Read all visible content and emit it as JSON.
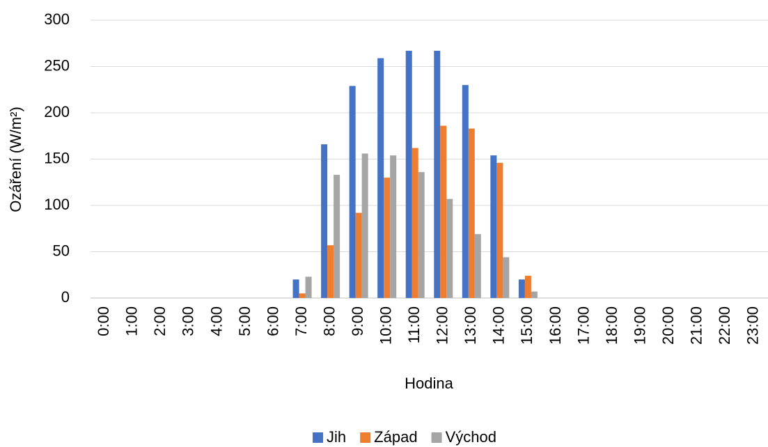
{
  "chart_data": {
    "type": "bar",
    "x_label": "Hodina",
    "y_label": "Ozáření (W/m²)",
    "categories": [
      "0:00",
      "1:00",
      "2:00",
      "3:00",
      "4:00",
      "5:00",
      "6:00",
      "7:00",
      "8:00",
      "9:00",
      "10:00",
      "11:00",
      "12:00",
      "13:00",
      "14:00",
      "15:00",
      "16:00",
      "17:00",
      "18:00",
      "19:00",
      "20:00",
      "21:00",
      "22:00",
      "23:00"
    ],
    "series": [
      {
        "name": "Jih",
        "color": "#4472c4",
        "values": [
          0,
          0,
          0,
          0,
          0,
          0,
          0,
          20,
          166,
          229,
          259,
          267,
          267,
          230,
          154,
          20,
          0,
          0,
          0,
          0,
          0,
          0,
          0,
          0
        ]
      },
      {
        "name": "Západ",
        "color": "#ed7d31",
        "values": [
          0,
          0,
          0,
          0,
          0,
          0,
          0,
          5,
          57,
          92,
          130,
          162,
          186,
          183,
          146,
          24,
          0,
          0,
          0,
          0,
          0,
          0,
          0,
          0
        ]
      },
      {
        "name": "Východ",
        "color": "#a5a5a5",
        "values": [
          0,
          0,
          0,
          0,
          0,
          0,
          0,
          23,
          133,
          156,
          154,
          136,
          107,
          69,
          44,
          7,
          0,
          0,
          0,
          0,
          0,
          0,
          0,
          0
        ]
      }
    ],
    "ylim": [
      0,
      300
    ],
    "yticks": [
      0,
      50,
      100,
      150,
      200,
      250,
      300
    ],
    "grid": true,
    "legend": "bottom"
  }
}
